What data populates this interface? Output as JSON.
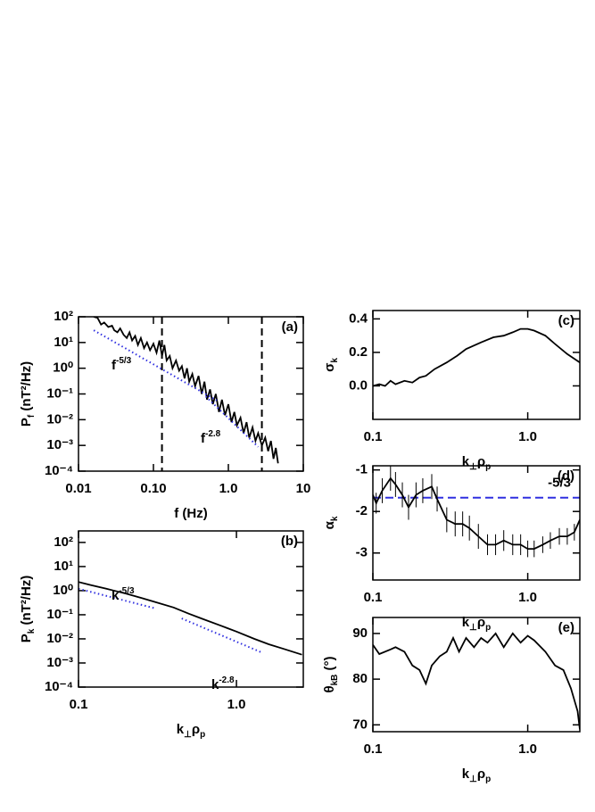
{
  "chart_data": [
    {
      "type": "line",
      "panel_label": "(a)",
      "xlabel": [
        "f (Hz)"
      ],
      "ylabel": [
        "P",
        "f",
        "  (nT²/Hz)"
      ],
      "xlog": true,
      "ylog": true,
      "xlim": [
        0.01,
        10
      ],
      "ylim": [
        0.0001,
        100
      ],
      "xticks": [
        0.01,
        {
          "value": 0.1,
          "label": "0.10"
        },
        {
          "value": 1,
          "label": "1.0"
        },
        10
      ],
      "yticks": [
        {
          "value": 100,
          "label": "10²"
        },
        {
          "value": 10,
          "label": "10¹"
        },
        {
          "value": 1,
          "label": "10⁰"
        },
        {
          "value": 0.1,
          "label": "10⁻¹"
        },
        {
          "value": 0.01,
          "label": "10⁻²"
        },
        {
          "value": 0.001,
          "label": "10⁻³"
        },
        {
          "value": 0.0001,
          "label": "10⁻⁴"
        }
      ],
      "vlines": [
        0.13,
        2.8
      ],
      "series": [
        {
          "color": "#000000",
          "style": "solid",
          "x": [
            0.016,
            0.018,
            0.02,
            0.022,
            0.025,
            0.028,
            0.03,
            0.033,
            0.036,
            0.04,
            0.044,
            0.048,
            0.052,
            0.057,
            0.062,
            0.068,
            0.075,
            0.082,
            0.09,
            0.1,
            0.11,
            0.12,
            0.13,
            0.14,
            0.15,
            0.165,
            0.18,
            0.2,
            0.22,
            0.24,
            0.26,
            0.28,
            0.3,
            0.33,
            0.36,
            0.4,
            0.44,
            0.48,
            0.52,
            0.57,
            0.62,
            0.68,
            0.75,
            0.82,
            0.9,
            1.0,
            1.1,
            1.2,
            1.3,
            1.45,
            1.6,
            1.75,
            1.9,
            2.1,
            2.3,
            2.5,
            2.8,
            3.1,
            3.4,
            3.7,
            4.0,
            4.3,
            4.6
          ],
          "values": [
            100,
            90,
            50,
            60,
            40,
            45,
            30,
            25,
            35,
            20,
            15,
            25,
            12,
            18,
            8,
            15,
            6,
            10,
            5,
            9,
            4,
            12,
            3,
            8,
            2,
            3,
            1,
            2,
            0.8,
            1.2,
            0.4,
            1,
            0.3,
            0.6,
            0.2,
            0.5,
            0.1,
            0.3,
            0.06,
            0.15,
            0.04,
            0.1,
            0.02,
            0.06,
            0.015,
            0.04,
            0.008,
            0.02,
            0.006,
            0.012,
            0.003,
            0.008,
            0.002,
            0.005,
            0.0015,
            0.003,
            0.001,
            0.002,
            0.0006,
            0.0015,
            0.0003,
            0.0008,
            0.0002
          ]
        },
        {
          "color": "#3030e0",
          "style": "dotted",
          "label": [
            "f",
            "-5/3"
          ],
          "x": [
            0.016,
            0.7
          ],
          "values": [
            30,
            0.056
          ]
        },
        {
          "color": "#3030e0",
          "style": "dotted",
          "label": [
            "f",
            "-2.8"
          ],
          "x": [
            0.5,
            2.5
          ],
          "values": [
            0.08,
            0.00088
          ]
        }
      ]
    },
    {
      "type": "line",
      "panel_label": "(b)",
      "xlabel": [
        "k",
        "⊥",
        "ρ",
        "p"
      ],
      "ylabel": [
        "P",
        "k",
        "  (nT²/Hz)"
      ],
      "xlog": true,
      "ylog": true,
      "xlim": [
        0.1,
        2.65
      ],
      "ylim": [
        0.0001,
        300
      ],
      "xticks": [
        0.1,
        {
          "value": 1,
          "label": "1.0"
        }
      ],
      "yticks": [
        {
          "value": 100,
          "label": "10²"
        },
        {
          "value": 10,
          "label": "10¹"
        },
        {
          "value": 1,
          "label": "10⁰"
        },
        {
          "value": 0.1,
          "label": "10⁻¹"
        },
        {
          "value": 0.01,
          "label": "10⁻²"
        },
        {
          "value": 0.001,
          "label": "10⁻³"
        },
        {
          "value": 0.0001,
          "label": "10⁻⁴"
        }
      ],
      "series": [
        {
          "color": "#000000",
          "style": "solid",
          "x": [
            0.1,
            0.12,
            0.15,
            0.2,
            0.25,
            0.3,
            0.4,
            0.5,
            0.6,
            0.8,
            1.0,
            1.3,
            1.6,
            2.0,
            2.6
          ],
          "values": [
            2.3,
            1.7,
            1.2,
            0.75,
            0.5,
            0.35,
            0.2,
            0.11,
            0.07,
            0.035,
            0.02,
            0.01,
            0.006,
            0.0038,
            0.0022
          ]
        },
        {
          "color": "#3030e0",
          "style": "dotted",
          "label": [
            "k",
            "-5/3"
          ],
          "x": [
            0.1,
            0.3
          ],
          "values": [
            1.2,
            0.19
          ]
        },
        {
          "color": "#3030e0",
          "style": "dotted",
          "label": [
            "k",
            "-2.8"
          ],
          "x": [
            0.45,
            1.45
          ],
          "values": [
            0.07,
            0.0027
          ]
        }
      ]
    },
    {
      "type": "line",
      "panel_label": "(c)",
      "xlabel": [
        "k",
        "⊥",
        "ρ",
        "p"
      ],
      "ylabel": [
        "σ",
        "k"
      ],
      "xlog": true,
      "ylog": false,
      "xlim": [
        0.1,
        2.17
      ],
      "ylim": [
        -0.2,
        0.45
      ],
      "xticks": [
        0.1,
        {
          "value": 1,
          "label": "1.0"
        }
      ],
      "yticks": [
        {
          "value": 0.4,
          "label": "0.4"
        },
        {
          "value": 0.2,
          "label": "0.2"
        },
        {
          "value": 0,
          "label": "0.0"
        }
      ],
      "series": [
        {
          "color": "#000000",
          "style": "solid",
          "x": [
            0.1,
            0.11,
            0.12,
            0.13,
            0.14,
            0.16,
            0.18,
            0.2,
            0.22,
            0.25,
            0.3,
            0.35,
            0.4,
            0.5,
            0.6,
            0.7,
            0.8,
            0.9,
            1.0,
            1.1,
            1.3,
            1.5,
            1.8,
            2.17
          ],
          "values": [
            0.0,
            0.01,
            0.0,
            0.03,
            0.01,
            0.03,
            0.02,
            0.05,
            0.06,
            0.1,
            0.14,
            0.18,
            0.22,
            0.26,
            0.29,
            0.3,
            0.32,
            0.34,
            0.34,
            0.33,
            0.3,
            0.25,
            0.19,
            0.14
          ]
        }
      ]
    },
    {
      "type": "line",
      "panel_label": "(d)",
      "xlabel": [
        "k",
        "⊥",
        "ρ",
        "p"
      ],
      "ylabel": [
        "α",
        "k"
      ],
      "xlog": true,
      "ylog": false,
      "xlim": [
        0.1,
        2.17
      ],
      "ylim": [
        -3.65,
        -0.9
      ],
      "xticks": [
        0.1,
        {
          "value": 1,
          "label": "1.0"
        }
      ],
      "yticks": [
        -1,
        -2,
        -3
      ],
      "hline": {
        "value": -1.667,
        "label": "-5/3",
        "color": "#3030e0"
      },
      "series": [
        {
          "color": "#000000",
          "style": "solid",
          "x": [
            0.1,
            0.105,
            0.115,
            0.13,
            0.14,
            0.155,
            0.17,
            0.19,
            0.21,
            0.24,
            0.26,
            0.3,
            0.34,
            0.38,
            0.42,
            0.48,
            0.55,
            0.62,
            0.7,
            0.8,
            0.9,
            1.0,
            1.1,
            1.25,
            1.4,
            1.6,
            1.8,
            2.0,
            2.17
          ],
          "values": [
            -1.6,
            -1.8,
            -1.5,
            -1.2,
            -1.35,
            -1.6,
            -1.9,
            -1.6,
            -1.5,
            -1.4,
            -1.7,
            -2.2,
            -2.3,
            -2.3,
            -2.4,
            -2.6,
            -2.8,
            -2.8,
            -2.7,
            -2.8,
            -2.8,
            -2.9,
            -2.9,
            -2.8,
            -2.7,
            -2.6,
            -2.6,
            -2.5,
            -2.2
          ],
          "errors": [
            0.2,
            0.25,
            0.3,
            0.3,
            0.3,
            0.3,
            0.3,
            0.3,
            0.3,
            0.3,
            0.3,
            0.3,
            0.3,
            0.3,
            0.3,
            0.3,
            0.25,
            0.25,
            0.25,
            0.25,
            0.25,
            0.2,
            0.2,
            0.2,
            0.2,
            0.2,
            0.2,
            0.2,
            0.2
          ]
        }
      ]
    },
    {
      "type": "line",
      "panel_label": "(e)",
      "xlabel": [
        "k",
        "⊥",
        "ρ",
        "p"
      ],
      "ylabel": [
        "θ",
        "kB",
        " (°)"
      ],
      "xlog": true,
      "ylog": false,
      "xlim": [
        0.1,
        2.17
      ],
      "ylim": [
        68.5,
        93.5
      ],
      "xticks": [
        0.1,
        {
          "value": 1,
          "label": "1.0"
        }
      ],
      "yticks": [
        90,
        80,
        70
      ],
      "series": [
        {
          "color": "#000000",
          "style": "solid",
          "x": [
            0.1,
            0.11,
            0.13,
            0.14,
            0.16,
            0.18,
            0.2,
            0.22,
            0.24,
            0.27,
            0.3,
            0.33,
            0.36,
            0.4,
            0.45,
            0.5,
            0.55,
            0.62,
            0.7,
            0.8,
            0.9,
            1.0,
            1.1,
            1.3,
            1.5,
            1.7,
            1.9,
            2.1,
            2.17
          ],
          "values": [
            87.5,
            85.5,
            86.5,
            87,
            86,
            83,
            82,
            79,
            83,
            85,
            86,
            89,
            86,
            89,
            87,
            89,
            88,
            90,
            87,
            90,
            88,
            89.5,
            88.5,
            86,
            83,
            82,
            78,
            73,
            69
          ]
        }
      ]
    }
  ]
}
